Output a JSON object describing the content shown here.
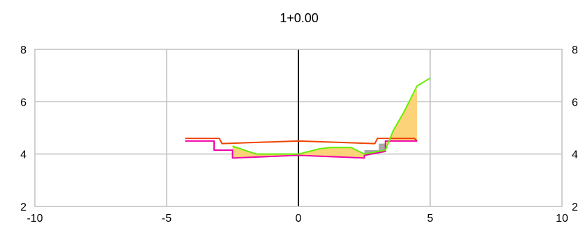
{
  "chart_data": {
    "type": "line",
    "title": "1+0.00",
    "xlim": [
      -10,
      10
    ],
    "ylim": [
      2,
      8
    ],
    "x_ticks": [
      "-10",
      "-5",
      "0",
      "5",
      "10"
    ],
    "x_tick_values": [
      -10,
      -5,
      0,
      5,
      10
    ],
    "y_ticks": [
      "2",
      "4",
      "6",
      "8"
    ],
    "y_tick_values": [
      2,
      4,
      6,
      8
    ],
    "grid": true,
    "right_axis_labels": true,
    "center_line_x": 0,
    "colors": {
      "grid": "#c0c0c0",
      "axis": "#000000",
      "center": "#000000",
      "ground": "#66ee00",
      "design": "#ee4400",
      "subgrade": "#ee00aa",
      "fill": "#fdd37a",
      "cut": "#a9a9a9"
    },
    "series": [
      {
        "key": "design",
        "points": [
          [
            -4.3,
            4.6
          ],
          [
            -3.0,
            4.6
          ],
          [
            -2.9,
            4.4
          ],
          [
            0.0,
            4.5
          ],
          [
            2.9,
            4.4
          ],
          [
            3.0,
            4.6
          ],
          [
            4.4,
            4.6
          ],
          [
            4.5,
            4.5
          ]
        ]
      },
      {
        "key": "subgrade",
        "points": [
          [
            -4.3,
            4.5
          ],
          [
            -3.2,
            4.5
          ],
          [
            -3.2,
            4.15
          ],
          [
            -2.5,
            4.15
          ],
          [
            -2.5,
            3.85
          ],
          [
            0.0,
            3.95
          ],
          [
            2.5,
            3.85
          ],
          [
            2.5,
            3.95
          ],
          [
            3.3,
            4.1
          ],
          [
            3.3,
            4.5
          ],
          [
            4.5,
            4.5
          ]
        ]
      },
      {
        "key": "ground",
        "points": [
          [
            -2.5,
            4.3
          ],
          [
            -1.6,
            4.0
          ],
          [
            0.0,
            4.0
          ],
          [
            0.8,
            4.2
          ],
          [
            1.2,
            4.25
          ],
          [
            2.0,
            4.25
          ],
          [
            2.5,
            4.0
          ],
          [
            3.3,
            4.15
          ],
          [
            3.6,
            4.9
          ],
          [
            4.0,
            5.6
          ],
          [
            4.5,
            6.6
          ],
          [
            5.0,
            6.9
          ]
        ]
      }
    ],
    "areas": [
      {
        "key": "fill",
        "points": [
          [
            -2.5,
            4.3
          ],
          [
            -1.6,
            4.0
          ],
          [
            0.0,
            4.0
          ],
          [
            0.8,
            4.2
          ],
          [
            1.2,
            4.25
          ],
          [
            2.0,
            4.25
          ],
          [
            2.5,
            4.0
          ],
          [
            2.5,
            3.85
          ],
          [
            0.0,
            3.95
          ],
          [
            -2.5,
            3.85
          ]
        ]
      },
      {
        "key": "fill",
        "points": [
          [
            3.3,
            4.15
          ],
          [
            3.6,
            4.9
          ],
          [
            4.0,
            5.6
          ],
          [
            4.5,
            6.5
          ],
          [
            4.5,
            4.5
          ],
          [
            3.3,
            4.5
          ]
        ]
      },
      {
        "key": "cut",
        "points": [
          [
            2.5,
            3.95
          ],
          [
            2.5,
            4.15
          ],
          [
            3.05,
            4.15
          ],
          [
            3.05,
            4.4
          ],
          [
            3.3,
            4.4
          ],
          [
            3.3,
            4.1
          ]
        ]
      }
    ]
  }
}
